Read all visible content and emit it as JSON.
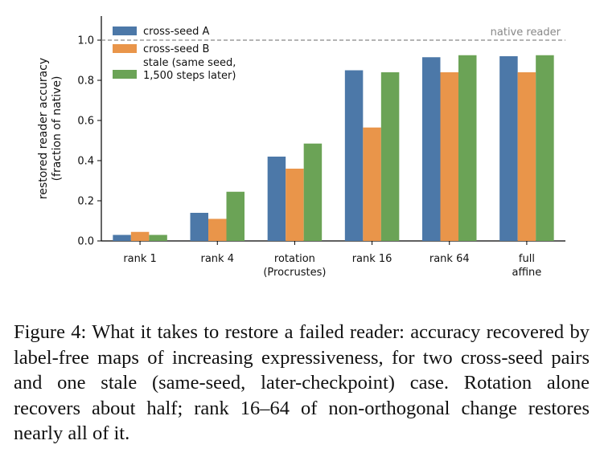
{
  "chart_data": {
    "type": "bar",
    "categories": [
      "rank 1",
      "rank 4",
      "rotation\n(Procrustes)",
      "rank 16",
      "rank 64",
      "full\naffine"
    ],
    "series": [
      {
        "name": "cross-seed A",
        "color": "#4C78A8",
        "values": [
          0.03,
          0.14,
          0.42,
          0.85,
          0.915,
          0.92
        ]
      },
      {
        "name": "cross-seed B",
        "color": "#E9954A",
        "values": [
          0.045,
          0.11,
          0.36,
          0.565,
          0.84,
          0.84
        ]
      },
      {
        "name": "stale (same seed,\n1,500 steps later)",
        "color": "#6BA356",
        "values": [
          0.03,
          0.245,
          0.485,
          0.84,
          0.925,
          0.925
        ]
      }
    ],
    "ylabel_line1": "restored reader accuracy",
    "ylabel_line2": "(fraction of native)",
    "ylim": [
      0,
      1.12
    ],
    "yticks": [
      "0.0",
      "0.2",
      "0.4",
      "0.6",
      "0.8",
      "1.0"
    ],
    "reference_line": {
      "value": 1.0,
      "label": "native reader",
      "style": "dashed"
    },
    "legend_position": "top-left",
    "grid": false
  },
  "caption": "Figure 4: What it takes to restore a failed reader: accuracy recovered by label-free maps of increasing expressiveness, for two cross-seed pairs and one stale (same-seed, later-checkpoint) case. Rotation alone recovers about half; rank 16–64 of non-orthogonal change restores nearly all of it."
}
